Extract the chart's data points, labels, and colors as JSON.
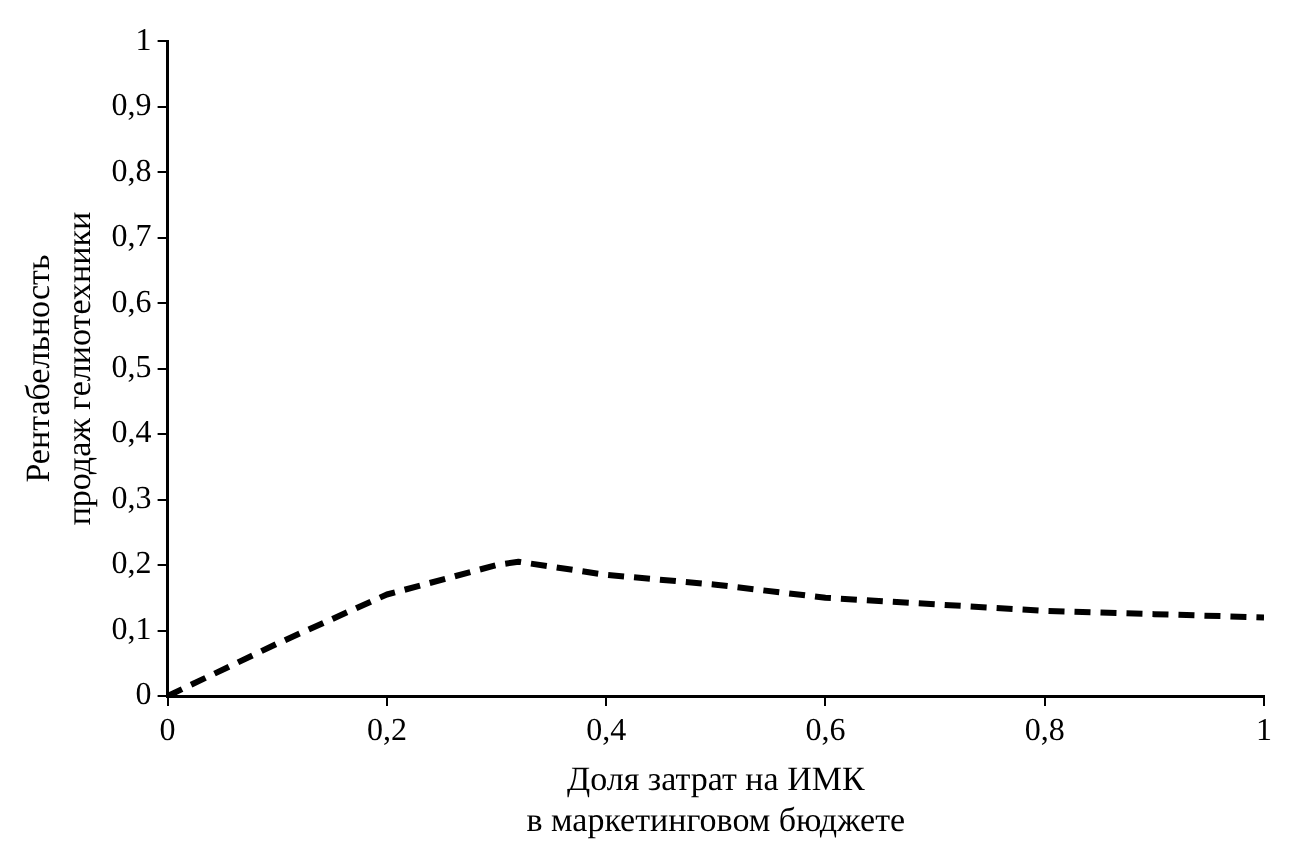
{
  "chart_data": {
    "type": "line",
    "xlabel": "Доля затрат на ИМК\nв маркетинговом бюджете",
    "ylabel": "Рентабельность\nпродаж гелиотехники",
    "series": [
      {
        "color": "#000000",
        "x": [
          0,
          0.1,
          0.2,
          0.3,
          0.32,
          0.4,
          0.5,
          0.6,
          0.7,
          0.8,
          0.9,
          1
        ],
        "values": [
          0,
          0.08,
          0.155,
          0.2,
          0.205,
          0.185,
          0.17,
          0.15,
          0.14,
          0.13,
          0.125,
          0.12
        ]
      }
    ],
    "xlim": [
      0,
      1
    ],
    "xticks": [
      0,
      {
        "value": 0.2,
        "label": "0,2"
      },
      {
        "value": 0.4,
        "label": "0,4"
      },
      {
        "value": 0.6,
        "label": "0,6"
      },
      {
        "value": 0.8,
        "label": "0,8"
      },
      1
    ],
    "ylim": [
      0,
      1
    ],
    "yticks": [
      0,
      {
        "value": 0.1,
        "label": "0,1"
      },
      {
        "value": 0.2,
        "label": "0,2"
      },
      {
        "value": 0.3,
        "label": "0,3"
      },
      {
        "value": 0.4,
        "label": "0,4"
      },
      {
        "value": 0.5,
        "label": "0,5"
      },
      {
        "value": 0.6,
        "label": "0,6"
      },
      {
        "value": 0.7,
        "label": "0,7"
      },
      {
        "value": 0.8,
        "label": "0,8"
      },
      {
        "value": 0.9,
        "label": "0,9"
      },
      1
    ],
    "grid": false,
    "legend": false,
    "marker": "none",
    "line_style": "dashed"
  }
}
